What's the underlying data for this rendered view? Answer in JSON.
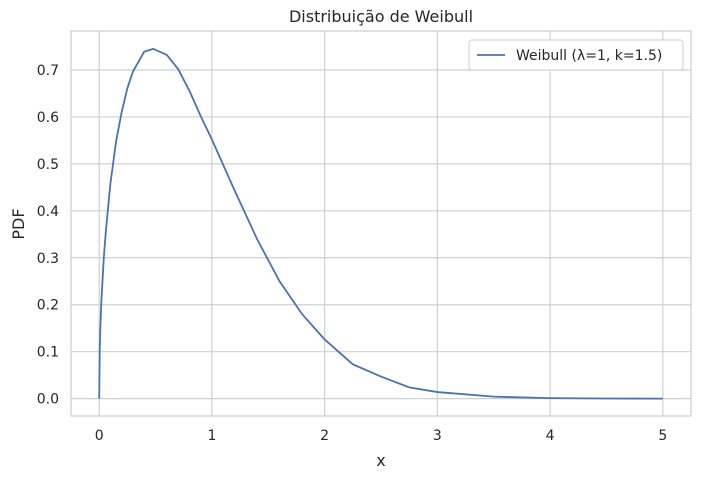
{
  "chart_data": {
    "type": "line",
    "title": "Distribuição de Weibull",
    "xlabel": "x",
    "ylabel": "PDF",
    "xlim": [
      -0.25,
      5.25
    ],
    "ylim": [
      -0.037,
      0.783
    ],
    "x_ticks": [
      0,
      1,
      2,
      3,
      4,
      5
    ],
    "y_ticks": [
      0.0,
      0.1,
      0.2,
      0.3,
      0.4,
      0.5,
      0.6,
      0.7
    ],
    "x_tick_labels": [
      "0",
      "1",
      "2",
      "3",
      "4",
      "5"
    ],
    "y_tick_labels": [
      "0.0",
      "0.1",
      "0.2",
      "0.3",
      "0.4",
      "0.5",
      "0.6",
      "0.7"
    ],
    "grid": true,
    "legend_position": "top-right",
    "series": [
      {
        "name": "Weibull (λ=1, k=1.5)",
        "color": "#4c72b0",
        "x": [
          0,
          0.005,
          0.01,
          0.02,
          0.04,
          0.06,
          0.1,
          0.15,
          0.2,
          0.25,
          0.3,
          0.4,
          0.48,
          0.6,
          0.7,
          0.8,
          0.9,
          1.0,
          1.2,
          1.4,
          1.6,
          1.8,
          2.0,
          2.25,
          2.5,
          2.75,
          3.0,
          3.5,
          4.0,
          4.5,
          5.0
        ],
        "y": [
          0,
          0.106,
          0.149,
          0.21,
          0.297,
          0.359,
          0.459,
          0.548,
          0.611,
          0.661,
          0.697,
          0.739,
          0.745,
          0.732,
          0.702,
          0.656,
          0.602,
          0.552,
          0.444,
          0.34,
          0.25,
          0.18,
          0.126,
          0.073,
          0.047,
          0.024,
          0.014,
          0.0042,
          0.001,
          0.0002,
          0.0
        ]
      }
    ]
  }
}
